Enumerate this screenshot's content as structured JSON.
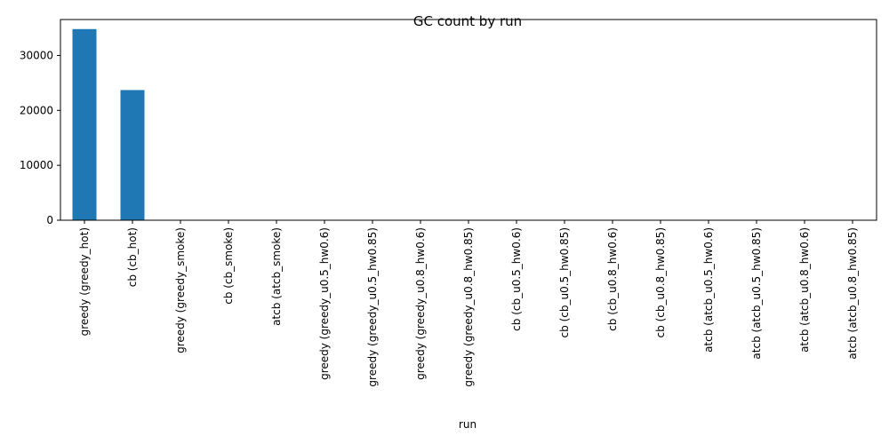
{
  "chart_data": {
    "type": "bar",
    "title": "GC count by run",
    "xlabel": "run",
    "ylabel": "",
    "categories": [
      "greedy (greedy_hot)",
      "cb (cb_hot)",
      "greedy (greedy_smoke)",
      "cb (cb_smoke)",
      "atcb (atcb_smoke)",
      "greedy (greedy_u0.5_hw0.6)",
      "greedy (greedy_u0.5_hw0.85)",
      "greedy (greedy_u0.8_hw0.6)",
      "greedy (greedy_u0.8_hw0.85)",
      "cb (cb_u0.5_hw0.6)",
      "cb (cb_u0.5_hw0.85)",
      "cb (cb_u0.8_hw0.6)",
      "cb (cb_u0.8_hw0.85)",
      "atcb (atcb_u0.5_hw0.6)",
      "atcb (atcb_u0.5_hw0.85)",
      "atcb (atcb_u0.8_hw0.6)",
      "atcb (atcb_u0.8_hw0.85)"
    ],
    "values": [
      34800,
      23700,
      0,
      0,
      0,
      0,
      0,
      0,
      0,
      0,
      0,
      0,
      0,
      0,
      0,
      0,
      0
    ],
    "ylim": [
      0,
      36540
    ],
    "yticks": [
      0,
      10000,
      20000,
      30000
    ],
    "grid": false,
    "bar_color": "#1f77b4"
  }
}
